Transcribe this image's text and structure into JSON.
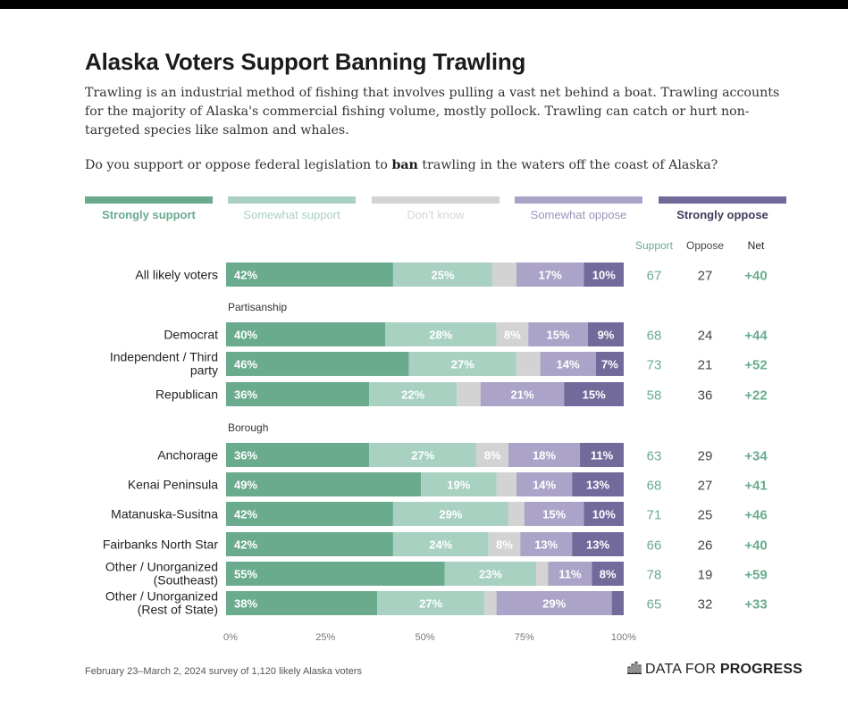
{
  "title": "Alaska Voters Support Banning Trawling",
  "subtitle": "Trawling is an industrial method of fishing that involves pulling a vast net behind a boat. Trawling accounts for the majority of Alaska's commercial fishing volume, mostly pollock. Trawling can catch or hurt non-targeted species like salmon and whales.",
  "question": {
    "before": "Do you support or oppose federal legislation to ",
    "bold": "ban",
    "after": " trawling in the waters off the coast of Alaska?"
  },
  "footer": {
    "note": "February 23–March 2, 2024 survey of 1,120 likely Alaska voters",
    "brand_prefix": "DATA FOR ",
    "brand_bold": "PROGRESS",
    "brand_icon": "bar-chart-logo-icon"
  },
  "colors": {
    "strongly_support": "#6aab8e",
    "somewhat_support": "#a8d1c1",
    "dont_know": "#d3d3d3",
    "somewhat_oppose": "#aba4c8",
    "strongly_oppose": "#736a9c"
  },
  "chart_data": {
    "type": "bar",
    "orientation": "horizontal",
    "stacked": true,
    "xlim": [
      0,
      100
    ],
    "x_ticks": [
      "0%",
      "25%",
      "50%",
      "75%",
      "100%"
    ],
    "legend": [
      "Strongly support",
      "Somewhat support",
      "Don't know",
      "Somewhat oppose",
      "Strongly oppose"
    ],
    "legend_placement": "top",
    "summary_headers": [
      "Support",
      "Oppose",
      "Net"
    ],
    "rows": [
      {
        "label": [
          "All likely voters"
        ],
        "values": [
          42,
          25,
          6,
          17,
          10
        ],
        "labels": [
          "42%",
          "25%",
          "",
          "17%",
          "10%"
        ],
        "support": "67",
        "oppose": "27",
        "net": "+40"
      },
      {
        "group": "Partisanship"
      },
      {
        "label": [
          "Democrat"
        ],
        "values": [
          40,
          28,
          8,
          15,
          9
        ],
        "labels": [
          "40%",
          "28%",
          "8%",
          "15%",
          "9%"
        ],
        "support": "68",
        "oppose": "24",
        "net": "+44"
      },
      {
        "label": [
          "Independent / Third",
          "party"
        ],
        "values": [
          46,
          27,
          6,
          14,
          7
        ],
        "labels": [
          "46%",
          "27%",
          "",
          "14%",
          "7%"
        ],
        "support": "73",
        "oppose": "21",
        "net": "+52"
      },
      {
        "label": [
          "Republican"
        ],
        "values": [
          36,
          22,
          6,
          21,
          15
        ],
        "labels": [
          "36%",
          "22%",
          "",
          "21%",
          "15%"
        ],
        "support": "58",
        "oppose": "36",
        "net": "+22"
      },
      {
        "group": "Borough"
      },
      {
        "label": [
          "Anchorage"
        ],
        "values": [
          36,
          27,
          8,
          18,
          11
        ],
        "labels": [
          "36%",
          "27%",
          "8%",
          "18%",
          "11%"
        ],
        "support": "63",
        "oppose": "29",
        "net": "+34"
      },
      {
        "label": [
          "Kenai Peninsula"
        ],
        "values": [
          49,
          19,
          5,
          14,
          13
        ],
        "labels": [
          "49%",
          "19%",
          "",
          "14%",
          "13%"
        ],
        "support": "68",
        "oppose": "27",
        "net": "+41"
      },
      {
        "label": [
          "Matanuska-Susitna"
        ],
        "values": [
          42,
          29,
          4,
          15,
          10
        ],
        "labels": [
          "42%",
          "29%",
          "",
          "15%",
          "10%"
        ],
        "support": "71",
        "oppose": "25",
        "net": "+46"
      },
      {
        "label": [
          "Fairbanks North Star"
        ],
        "values": [
          42,
          24,
          8,
          13,
          13
        ],
        "labels": [
          "42%",
          "24%",
          "8%",
          "13%",
          "13%"
        ],
        "support": "66",
        "oppose": "26",
        "net": "+40"
      },
      {
        "label": [
          "Other / Unorganized",
          "(Southeast)"
        ],
        "values": [
          55,
          23,
          3,
          11,
          8
        ],
        "labels": [
          "55%",
          "23%",
          "",
          "11%",
          "8%"
        ],
        "support": "78",
        "oppose": "19",
        "net": "+59"
      },
      {
        "label": [
          "Other / Unorganized",
          "(Rest of State)"
        ],
        "values": [
          38,
          27,
          3,
          29,
          3
        ],
        "labels": [
          "38%",
          "27%",
          "",
          "29%",
          ""
        ],
        "support": "65",
        "oppose": "32",
        "net": "+33"
      }
    ]
  }
}
